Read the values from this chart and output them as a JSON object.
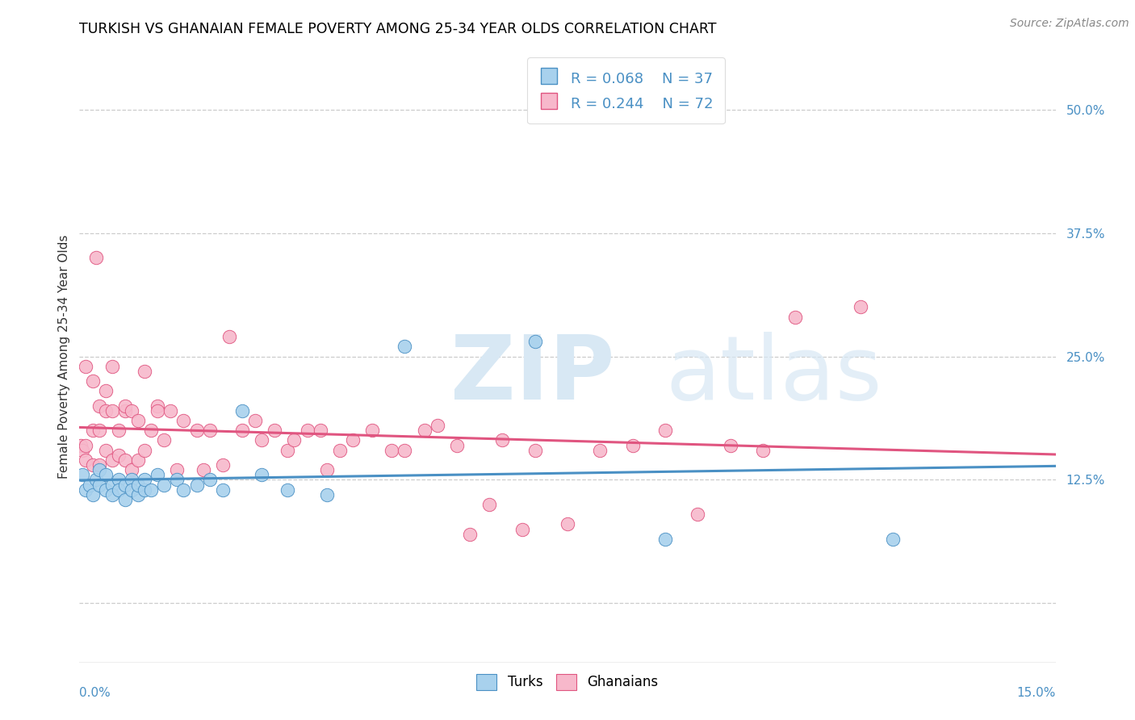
{
  "title": "TURKISH VS GHANAIAN FEMALE POVERTY AMONG 25-34 YEAR OLDS CORRELATION CHART",
  "source": "Source: ZipAtlas.com",
  "ylabel": "Female Poverty Among 25-34 Year Olds",
  "turks_R": 0.068,
  "turks_N": 37,
  "ghanaians_R": 0.244,
  "ghanaians_N": 72,
  "turks_color": "#a8d1ed",
  "ghanaians_color": "#f7b8cb",
  "turks_line_color": "#4a90c4",
  "ghanaians_line_color": "#e05580",
  "xlim": [
    0.0,
    0.15
  ],
  "ylim": [
    -0.06,
    0.56
  ],
  "ytick_positions": [
    0.0,
    0.125,
    0.25,
    0.375,
    0.5
  ],
  "turks_x": [
    0.0005,
    0.001,
    0.0015,
    0.002,
    0.0025,
    0.003,
    0.003,
    0.004,
    0.004,
    0.005,
    0.005,
    0.006,
    0.006,
    0.007,
    0.007,
    0.008,
    0.008,
    0.009,
    0.009,
    0.01,
    0.01,
    0.011,
    0.012,
    0.013,
    0.015,
    0.016,
    0.018,
    0.02,
    0.022,
    0.025,
    0.028,
    0.032,
    0.038,
    0.05,
    0.07,
    0.09,
    0.125
  ],
  "turks_y": [
    0.13,
    0.115,
    0.12,
    0.11,
    0.125,
    0.12,
    0.135,
    0.115,
    0.13,
    0.12,
    0.11,
    0.125,
    0.115,
    0.12,
    0.105,
    0.125,
    0.115,
    0.11,
    0.12,
    0.115,
    0.125,
    0.115,
    0.13,
    0.12,
    0.125,
    0.115,
    0.12,
    0.125,
    0.115,
    0.195,
    0.13,
    0.115,
    0.11,
    0.26,
    0.265,
    0.065,
    0.065
  ],
  "ghanaians_x": [
    0.0002,
    0.0005,
    0.001,
    0.001,
    0.001,
    0.002,
    0.002,
    0.002,
    0.0025,
    0.003,
    0.003,
    0.003,
    0.004,
    0.004,
    0.004,
    0.005,
    0.005,
    0.005,
    0.006,
    0.006,
    0.007,
    0.007,
    0.007,
    0.008,
    0.008,
    0.009,
    0.009,
    0.01,
    0.01,
    0.011,
    0.012,
    0.012,
    0.013,
    0.014,
    0.015,
    0.016,
    0.018,
    0.019,
    0.02,
    0.022,
    0.023,
    0.025,
    0.027,
    0.028,
    0.03,
    0.032,
    0.033,
    0.035,
    0.037,
    0.038,
    0.04,
    0.042,
    0.045,
    0.048,
    0.05,
    0.053,
    0.055,
    0.058,
    0.06,
    0.063,
    0.065,
    0.068,
    0.07,
    0.075,
    0.08,
    0.085,
    0.09,
    0.095,
    0.1,
    0.105,
    0.11,
    0.12
  ],
  "ghanaians_y": [
    0.16,
    0.155,
    0.145,
    0.16,
    0.24,
    0.14,
    0.175,
    0.225,
    0.35,
    0.14,
    0.175,
    0.2,
    0.155,
    0.195,
    0.215,
    0.145,
    0.195,
    0.24,
    0.15,
    0.175,
    0.145,
    0.195,
    0.2,
    0.135,
    0.195,
    0.145,
    0.185,
    0.155,
    0.235,
    0.175,
    0.2,
    0.195,
    0.165,
    0.195,
    0.135,
    0.185,
    0.175,
    0.135,
    0.175,
    0.14,
    0.27,
    0.175,
    0.185,
    0.165,
    0.175,
    0.155,
    0.165,
    0.175,
    0.175,
    0.135,
    0.155,
    0.165,
    0.175,
    0.155,
    0.155,
    0.175,
    0.18,
    0.16,
    0.07,
    0.1,
    0.165,
    0.075,
    0.155,
    0.08,
    0.155,
    0.16,
    0.175,
    0.09,
    0.16,
    0.155,
    0.29,
    0.3
  ]
}
